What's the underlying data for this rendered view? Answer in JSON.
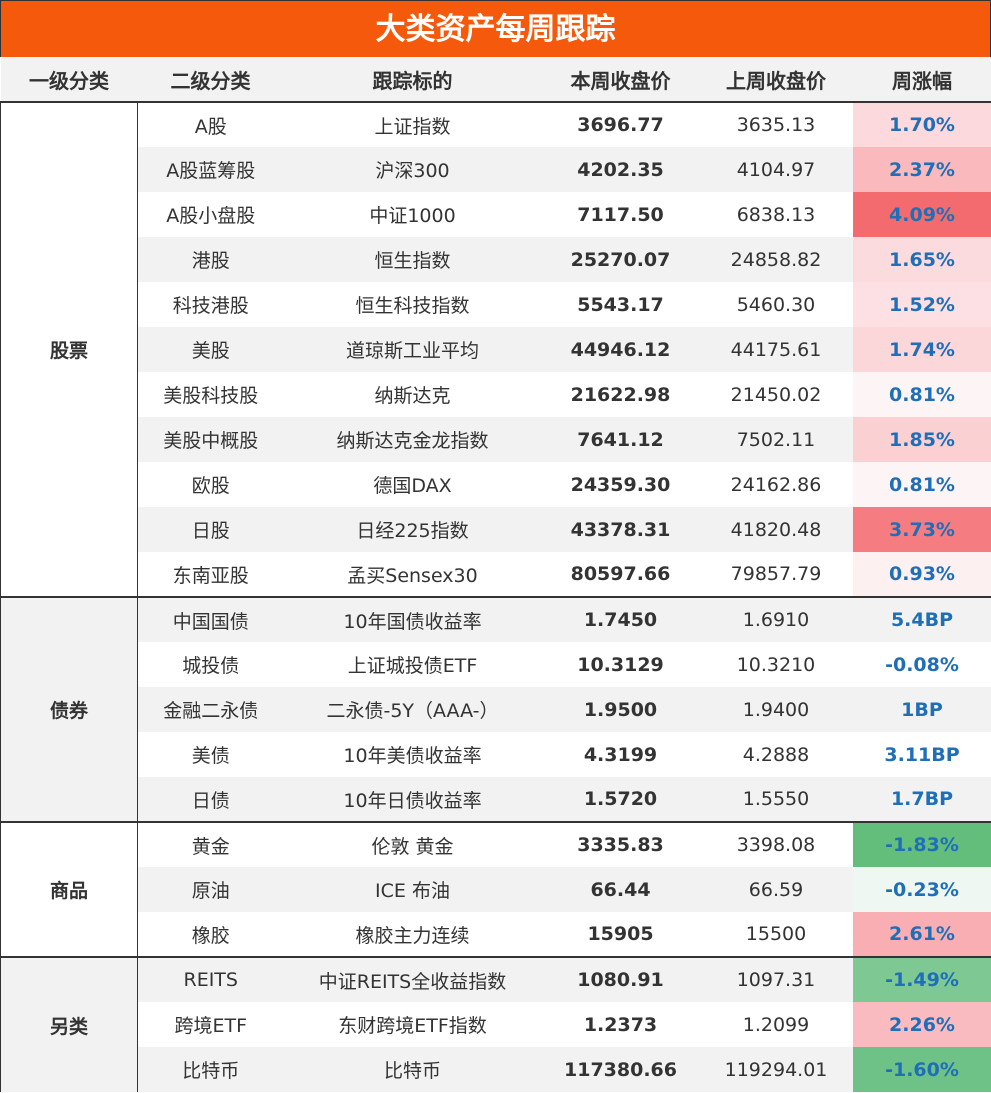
{
  "header": {
    "title": "大类资产每周跟踪"
  },
  "table": {
    "columns": [
      "一级分类",
      "二级分类",
      "跟踪标的",
      "本周收盘价",
      "上周收盘价",
      "周涨幅"
    ],
    "groups": [
      {
        "name": "股票",
        "rows": [
          {
            "category": "A股",
            "target": "上证指数",
            "this_week": "3696.77",
            "last_week": "3635.13",
            "change": "1.70%",
            "color": "#fcd9dc"
          },
          {
            "category": "A股蓝筹股",
            "target": "沪深300",
            "this_week": "4202.35",
            "last_week": "4104.97",
            "change": "2.37%",
            "color": "#f9b9bd"
          },
          {
            "category": "A股小盘股",
            "target": "中证1000",
            "this_week": "7117.50",
            "last_week": "6838.13",
            "change": "4.09%",
            "color": "#f46b6f"
          },
          {
            "category": "港股",
            "target": "恒生指数",
            "this_week": "25270.07",
            "last_week": "24858.82",
            "change": "1.65%",
            "color": "#fcdbde"
          },
          {
            "category": "科技港股",
            "target": "恒生科技指数",
            "this_week": "5543.17",
            "last_week": "5460.30",
            "change": "1.52%",
            "color": "#fce0e3"
          },
          {
            "category": "美股",
            "target": "道琼斯工业平均",
            "this_week": "44946.12",
            "last_week": "44175.61",
            "change": "1.74%",
            "color": "#fcd7da"
          },
          {
            "category": "美股科技股",
            "target": "纳斯达克",
            "this_week": "21622.98",
            "last_week": "21450.02",
            "change": "0.81%",
            "color": "#fdf4f5"
          },
          {
            "category": "美股中概股",
            "target": "纳斯达克金龙指数",
            "this_week": "7641.12",
            "last_week": "7502.11",
            "change": "1.85%",
            "color": "#fbd0d3"
          },
          {
            "category": "欧股",
            "target": "德国DAX",
            "this_week": "24359.30",
            "last_week": "24162.86",
            "change": "0.81%",
            "color": "#fdf4f5"
          },
          {
            "category": "日股",
            "target": "日经225指数",
            "this_week": "43378.31",
            "last_week": "41820.48",
            "change": "3.73%",
            "color": "#f57c80"
          },
          {
            "category": "东南亚股",
            "target": "孟买Sensex30",
            "this_week": "80597.66",
            "last_week": "79857.79",
            "change": "0.93%",
            "color": "#fdf0f1"
          }
        ]
      },
      {
        "name": "债券",
        "rows": [
          {
            "category": "中国国债",
            "target": "10年国债收益率",
            "this_week": "1.7450",
            "last_week": "1.6910",
            "change": "5.4BP",
            "color": "#f2f2f2"
          },
          {
            "category": "城投债",
            "target": "上证城投债ETF",
            "this_week": "10.3129",
            "last_week": "10.3210",
            "change": "-0.08%",
            "color": "#ffffff"
          },
          {
            "category": "金融二永债",
            "target": "二永债-5Y（AAA-）",
            "this_week": "1.9500",
            "last_week": "1.9400",
            "change": "1BP",
            "color": "#f2f2f2"
          },
          {
            "category": "美债",
            "target": "10年美债收益率",
            "this_week": "4.3199",
            "last_week": "4.2888",
            "change": "3.11BP",
            "color": "#ffffff"
          },
          {
            "category": "日债",
            "target": "10年日债收益率",
            "this_week": "1.5720",
            "last_week": "1.5550",
            "change": "1.7BP",
            "color": "#f2f2f2"
          }
        ]
      },
      {
        "name": "商品",
        "rows": [
          {
            "category": "黄金",
            "target": "伦敦 黄金",
            "this_week": "3335.83",
            "last_week": "3398.08",
            "change": "-1.83%",
            "color": "#63be7b"
          },
          {
            "category": "原油",
            "target": "ICE 布油",
            "this_week": "66.44",
            "last_week": "66.59",
            "change": "-0.23%",
            "color": "#eef7f1"
          },
          {
            "category": "橡胶",
            "target": "橡胶主力连续",
            "this_week": "15905",
            "last_week": "15500",
            "change": "2.61%",
            "color": "#f8aeb2"
          }
        ]
      },
      {
        "name": "另类",
        "rows": [
          {
            "category": "REITS",
            "target": "中证REITS全收益指数",
            "this_week": "1080.91",
            "last_week": "1097.31",
            "change": "-1.49%",
            "color": "#7dc893"
          },
          {
            "category": "跨境ETF",
            "target": "东财跨境ETF指数",
            "this_week": "1.2373",
            "last_week": "1.2099",
            "change": "2.26%",
            "color": "#f9bbbf"
          },
          {
            "category": "比特币",
            "target": "比特币",
            "this_week": "117380.66",
            "last_week": "119294.01",
            "change": "-1.60%",
            "color": "#6fc287"
          }
        ]
      }
    ]
  }
}
